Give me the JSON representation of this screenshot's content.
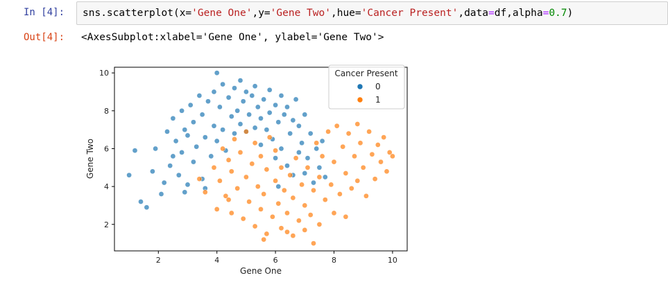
{
  "notebook": {
    "input_prompt": "In [4]:",
    "output_prompt": "Out[4]:",
    "code": {
      "fn": "sns.scatterplot(",
      "x_key": "x=",
      "x_val": "'Gene One'",
      "sep1": ",",
      "y_key": "y=",
      "y_val": "'Gene Two'",
      "sep2": ",",
      "hue_key": "hue=",
      "hue_val": "'Cancer Present'",
      "sep3": ",",
      "data_key": "data",
      "data_eq": "=",
      "data_val": "df,",
      "alpha_key": "alpha",
      "alpha_eq": "=",
      "alpha_val": "0.7",
      "close": ")"
    },
    "output_text": "<AxesSubplot:xlabel='Gene One', ylabel='Gene Two'>"
  },
  "colors": {
    "class0": "#1f77b4",
    "class1": "#ff7f0e",
    "prompt_in": "#303f9f",
    "prompt_out": "#d84315"
  },
  "chart_data": {
    "type": "scatter",
    "title": "",
    "xlabel": "Gene One",
    "ylabel": "Gene Two",
    "xlim": [
      0.5,
      10.5
    ],
    "ylim": [
      0.6,
      10.3
    ],
    "xticks": [
      2,
      4,
      6,
      8,
      10
    ],
    "yticks": [
      2,
      4,
      6,
      8,
      10
    ],
    "alpha": 0.7,
    "legend": {
      "title": "Cancer Present",
      "entries": [
        "0",
        "1"
      ],
      "placement": "top-right"
    },
    "series": [
      {
        "name": "0",
        "color": "#1f77b4",
        "points": [
          [
            1.0,
            4.6
          ],
          [
            1.2,
            5.9
          ],
          [
            1.4,
            3.2
          ],
          [
            1.6,
            2.9
          ],
          [
            1.8,
            4.8
          ],
          [
            1.9,
            6.0
          ],
          [
            2.1,
            3.6
          ],
          [
            2.2,
            4.2
          ],
          [
            2.3,
            6.9
          ],
          [
            2.4,
            5.1
          ],
          [
            2.5,
            5.6
          ],
          [
            2.5,
            7.6
          ],
          [
            2.6,
            6.4
          ],
          [
            2.7,
            4.6
          ],
          [
            2.8,
            8.0
          ],
          [
            2.8,
            5.8
          ],
          [
            2.9,
            7.0
          ],
          [
            3.0,
            4.1
          ],
          [
            3.0,
            6.7
          ],
          [
            3.1,
            8.3
          ],
          [
            3.2,
            5.3
          ],
          [
            3.2,
            7.4
          ],
          [
            3.3,
            6.1
          ],
          [
            3.4,
            8.8
          ],
          [
            3.5,
            4.4
          ],
          [
            3.5,
            7.8
          ],
          [
            3.6,
            6.6
          ],
          [
            3.7,
            8.5
          ],
          [
            3.8,
            5.6
          ],
          [
            3.9,
            9.0
          ],
          [
            3.9,
            7.2
          ],
          [
            4.0,
            10.0
          ],
          [
            4.0,
            6.4
          ],
          [
            4.1,
            8.2
          ],
          [
            4.2,
            7.0
          ],
          [
            4.2,
            9.4
          ],
          [
            4.3,
            5.9
          ],
          [
            4.4,
            8.7
          ],
          [
            4.5,
            7.7
          ],
          [
            4.6,
            9.2
          ],
          [
            4.6,
            6.8
          ],
          [
            4.7,
            8.0
          ],
          [
            4.8,
            9.6
          ],
          [
            4.8,
            7.3
          ],
          [
            4.9,
            8.5
          ],
          [
            5.0,
            6.9
          ],
          [
            5.0,
            9.0
          ],
          [
            5.1,
            7.8
          ],
          [
            5.2,
            8.8
          ],
          [
            5.3,
            7.1
          ],
          [
            5.3,
            9.3
          ],
          [
            5.4,
            8.2
          ],
          [
            5.5,
            7.6
          ],
          [
            5.5,
            6.2
          ],
          [
            5.6,
            8.6
          ],
          [
            5.7,
            7.0
          ],
          [
            5.8,
            9.1
          ],
          [
            5.8,
            7.9
          ],
          [
            5.9,
            6.5
          ],
          [
            6.0,
            8.3
          ],
          [
            6.0,
            5.5
          ],
          [
            6.1,
            7.4
          ],
          [
            6.2,
            8.8
          ],
          [
            6.2,
            6.0
          ],
          [
            6.3,
            7.8
          ],
          [
            6.4,
            5.1
          ],
          [
            6.4,
            8.2
          ],
          [
            6.5,
            6.8
          ],
          [
            6.6,
            7.5
          ],
          [
            6.6,
            4.6
          ],
          [
            6.7,
            8.6
          ],
          [
            6.8,
            5.8
          ],
          [
            6.8,
            7.2
          ],
          [
            6.9,
            6.3
          ],
          [
            7.0,
            7.8
          ],
          [
            7.0,
            4.7
          ],
          [
            7.1,
            5.5
          ],
          [
            7.2,
            6.8
          ],
          [
            7.3,
            4.2
          ],
          [
            7.4,
            6.0
          ],
          [
            7.5,
            5.0
          ],
          [
            7.6,
            6.4
          ],
          [
            7.7,
            4.5
          ],
          [
            3.6,
            3.9
          ],
          [
            2.9,
            3.7
          ],
          [
            6.1,
            4.0
          ]
        ]
      },
      {
        "name": "1",
        "color": "#ff7f0e",
        "points": [
          [
            3.4,
            4.4
          ],
          [
            3.6,
            3.7
          ],
          [
            3.9,
            5.0
          ],
          [
            4.0,
            2.8
          ],
          [
            4.1,
            4.3
          ],
          [
            4.2,
            6.0
          ],
          [
            4.3,
            3.5
          ],
          [
            4.4,
            5.4
          ],
          [
            4.5,
            2.6
          ],
          [
            4.5,
            4.8
          ],
          [
            4.6,
            6.5
          ],
          [
            4.7,
            3.9
          ],
          [
            4.8,
            5.8
          ],
          [
            4.9,
            2.3
          ],
          [
            5.0,
            4.5
          ],
          [
            5.0,
            6.9
          ],
          [
            5.1,
            3.2
          ],
          [
            5.2,
            5.2
          ],
          [
            5.3,
            1.9
          ],
          [
            5.3,
            6.3
          ],
          [
            5.4,
            4.0
          ],
          [
            5.5,
            2.8
          ],
          [
            5.5,
            5.6
          ],
          [
            5.6,
            3.6
          ],
          [
            5.7,
            1.5
          ],
          [
            5.7,
            4.9
          ],
          [
            5.8,
            6.6
          ],
          [
            5.9,
            2.4
          ],
          [
            6.0,
            4.3
          ],
          [
            6.0,
            5.9
          ],
          [
            6.1,
            3.1
          ],
          [
            6.2,
            1.8
          ],
          [
            6.2,
            5.0
          ],
          [
            6.3,
            3.8
          ],
          [
            6.4,
            2.6
          ],
          [
            6.5,
            4.6
          ],
          [
            6.6,
            1.4
          ],
          [
            6.6,
            3.4
          ],
          [
            6.7,
            5.5
          ],
          [
            6.8,
            2.2
          ],
          [
            6.9,
            4.1
          ],
          [
            7.0,
            1.7
          ],
          [
            7.0,
            3.0
          ],
          [
            7.1,
            5.0
          ],
          [
            7.2,
            2.5
          ],
          [
            7.3,
            1.0
          ],
          [
            7.3,
            3.8
          ],
          [
            7.4,
            6.3
          ],
          [
            7.5,
            2.0
          ],
          [
            7.5,
            4.5
          ],
          [
            7.6,
            5.6
          ],
          [
            7.7,
            3.3
          ],
          [
            7.8,
            6.9
          ],
          [
            7.9,
            4.1
          ],
          [
            8.0,
            2.6
          ],
          [
            8.0,
            5.3
          ],
          [
            8.1,
            7.2
          ],
          [
            8.2,
            3.6
          ],
          [
            8.3,
            6.1
          ],
          [
            8.4,
            4.7
          ],
          [
            8.4,
            2.4
          ],
          [
            8.5,
            6.8
          ],
          [
            8.6,
            3.9
          ],
          [
            8.7,
            5.6
          ],
          [
            8.8,
            7.3
          ],
          [
            8.8,
            4.3
          ],
          [
            8.9,
            6.3
          ],
          [
            9.0,
            5.0
          ],
          [
            9.1,
            3.5
          ],
          [
            9.2,
            6.9
          ],
          [
            9.3,
            5.7
          ],
          [
            9.4,
            4.4
          ],
          [
            9.5,
            6.2
          ],
          [
            9.6,
            5.3
          ],
          [
            9.7,
            6.6
          ],
          [
            9.8,
            4.8
          ],
          [
            9.9,
            5.8
          ],
          [
            10.0,
            5.6
          ],
          [
            4.4,
            3.3
          ],
          [
            5.6,
            1.2
          ],
          [
            6.4,
            1.6
          ]
        ]
      }
    ]
  }
}
